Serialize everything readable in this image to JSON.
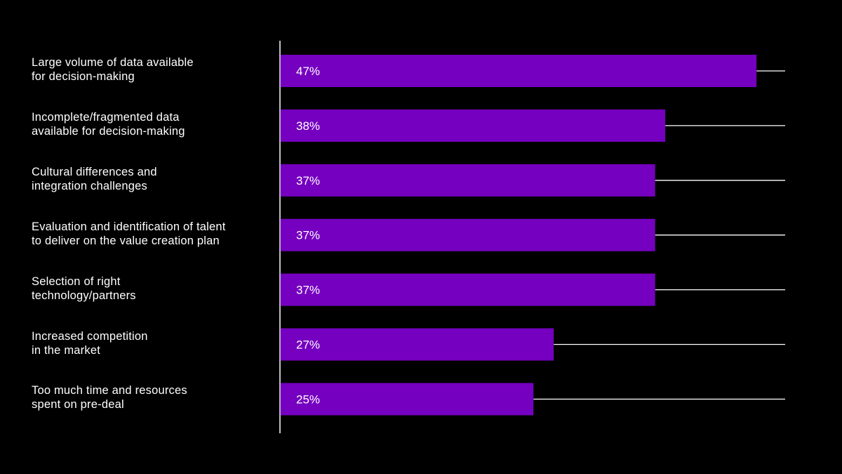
{
  "colors": {
    "background": "#000000",
    "bar": "#7500c0",
    "text": "#ffffff",
    "axis": "#ffffff",
    "track": "#ffffff"
  },
  "chart_data": {
    "type": "bar",
    "orientation": "horizontal",
    "categories": [
      [
        "Large volume of data available",
        "for decision-making"
      ],
      [
        "Incomplete/fragmented data",
        "available for decision-making"
      ],
      [
        "Cultural differences and",
        "integration challenges"
      ],
      [
        "Evaluation and identification of talent",
        "to deliver on the value creation plan"
      ],
      [
        "Selection of right",
        "technology/partners"
      ],
      [
        "Increased competition",
        "in the market"
      ],
      [
        "Too much time and resources",
        "spent on pre-deal"
      ]
    ],
    "values": [
      47,
      38,
      37,
      37,
      37,
      27,
      25
    ],
    "value_labels": [
      "47%",
      "38%",
      "37%",
      "37%",
      "37%",
      "27%",
      "25%"
    ],
    "unit": "%",
    "xlim": [
      0,
      50
    ],
    "grid": false,
    "legend": "none"
  }
}
